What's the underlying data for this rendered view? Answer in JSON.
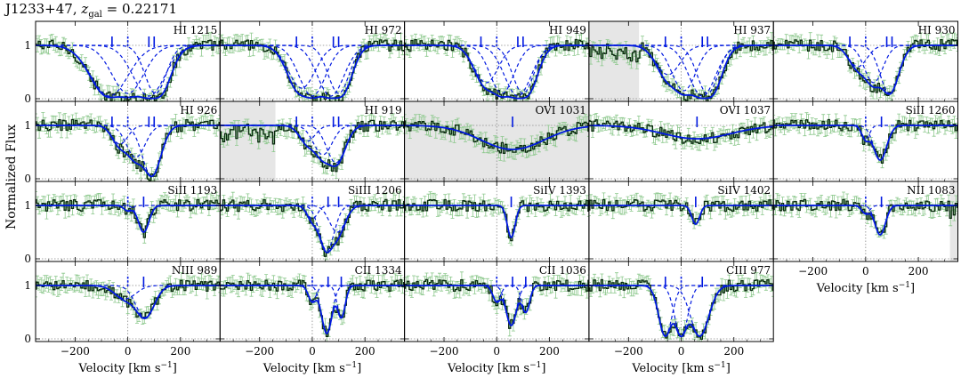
{
  "title": "J1233+47, z_gal = 0.22171",
  "title_parts": {
    "name": "J1233+47,",
    "z_symbol": "z",
    "z_sub": "gal",
    "z_value": "= 0.22171"
  },
  "ylabel": "Normalized Flux",
  "xlabel": "Velocity [km s",
  "xlabel_sup": "−1",
  "xlabel_tail": "]",
  "colors": {
    "data": "#0b2a10",
    "error": "#8cc88c",
    "model": "#0018e0",
    "shade": "#e6e6e6",
    "ref": "#888888"
  },
  "chart_data": {
    "type": "line",
    "xlim": [
      -350,
      350
    ],
    "ylim": [
      -0.05,
      1.45
    ],
    "xticks": [
      -200,
      0,
      200
    ],
    "xtick_labels": [
      "−200",
      "0",
      "200"
    ],
    "yticks": [
      0,
      1
    ],
    "ytick_labels": [
      "0",
      "1"
    ],
    "panels": [
      {
        "label": "HI 1215",
        "row": 0,
        "col": 0,
        "comps": [
          [
            -70,
            70,
            0.95
          ],
          [
            0,
            60,
            0.9
          ],
          [
            80,
            60,
            0.95
          ],
          [
            105,
            40,
            0.9
          ]
        ],
        "markers": [
          -60,
          0,
          80,
          100
        ],
        "shade": null
      },
      {
        "label": "HI 972",
        "row": 0,
        "col": 1,
        "comps": [
          [
            -40,
            50,
            0.8
          ],
          [
            0,
            50,
            0.95
          ],
          [
            70,
            50,
            0.95
          ],
          [
            100,
            40,
            0.9
          ]
        ],
        "markers": [
          -60,
          0,
          80,
          100
        ],
        "shade": null
      },
      {
        "label": "HI 949",
        "row": 0,
        "col": 2,
        "comps": [
          [
            -40,
            45,
            0.7
          ],
          [
            20,
            45,
            0.9
          ],
          [
            80,
            50,
            0.95
          ],
          [
            100,
            40,
            0.9
          ]
        ],
        "markers": [
          -60,
          0,
          80,
          100
        ],
        "shade": null
      },
      {
        "label": "HI 937",
        "row": 0,
        "col": 3,
        "comps": [
          [
            -50,
            45,
            0.55
          ],
          [
            10,
            45,
            0.85
          ],
          [
            80,
            50,
            0.95
          ],
          [
            100,
            40,
            0.9
          ]
        ],
        "markers": [
          -60,
          0,
          80,
          100
        ],
        "shade": [
          -350,
          -160
        ]
      },
      {
        "label": "HI 930",
        "row": 0,
        "col": 4,
        "comps": [
          [
            -30,
            35,
            0.4
          ],
          [
            30,
            35,
            0.7
          ],
          [
            90,
            35,
            0.9
          ]
        ],
        "markers": [
          -60,
          0,
          80,
          100
        ],
        "shade": null
      },
      {
        "label": "HI 926",
        "row": 1,
        "col": 0,
        "comps": [
          [
            -30,
            30,
            0.35
          ],
          [
            30,
            35,
            0.6
          ],
          [
            90,
            35,
            0.95
          ]
        ],
        "markers": [
          -60,
          0,
          80,
          100
        ],
        "shade": null
      },
      {
        "label": "HI 919",
        "row": 1,
        "col": 1,
        "comps": [
          [
            -20,
            30,
            0.3
          ],
          [
            40,
            35,
            0.55
          ],
          [
            90,
            35,
            0.7
          ]
        ],
        "markers": [
          -60,
          0,
          80,
          100
        ],
        "shade": [
          -350,
          -140
        ]
      },
      {
        "label": "OVI 1031",
        "row": 1,
        "col": 2,
        "comps": [
          [
            60,
            120,
            0.45
          ]
        ],
        "markers": [
          60
        ],
        "shade": [
          -350,
          350
        ]
      },
      {
        "label": "OVI 1037",
        "row": 1,
        "col": 3,
        "comps": [
          [
            60,
            130,
            0.25
          ]
        ],
        "markers": [
          60
        ],
        "shade": null
      },
      {
        "label": "SiII 1260",
        "row": 1,
        "col": 4,
        "comps": [
          [
            0,
            15,
            0.25
          ],
          [
            55,
            25,
            0.65
          ]
        ],
        "markers": [
          0,
          60
        ],
        "shade": null
      },
      {
        "label": "SiII 1193",
        "row": 2,
        "col": 0,
        "comps": [
          [
            0,
            15,
            0.1
          ],
          [
            60,
            20,
            0.5
          ]
        ],
        "markers": [
          0,
          60
        ],
        "shade": null
      },
      {
        "label": "SiIII 1206",
        "row": 2,
        "col": 1,
        "comps": [
          [
            0,
            20,
            0.25
          ],
          [
            55,
            28,
            0.85
          ],
          [
            95,
            30,
            0.5
          ]
        ],
        "markers": [
          0,
          60,
          100
        ],
        "shade": null
      },
      {
        "label": "SiIV 1393",
        "row": 2,
        "col": 2,
        "comps": [
          [
            55,
            15,
            0.6
          ]
        ],
        "markers": [
          55
        ],
        "shade": null
      },
      {
        "label": "SiIV 1402",
        "row": 2,
        "col": 3,
        "comps": [
          [
            55,
            15,
            0.35
          ]
        ],
        "markers": [
          55
        ],
        "shade": null
      },
      {
        "label": "NII 1083",
        "row": 2,
        "col": 4,
        "comps": [
          [
            0,
            15,
            0.15
          ],
          [
            55,
            20,
            0.55
          ]
        ],
        "markers": [
          0,
          60
        ],
        "shade": [
          320,
          350
        ]
      },
      {
        "label": "NIII 989",
        "row": 3,
        "col": 0,
        "comps": [
          [
            -10,
            40,
            0.25
          ],
          [
            65,
            35,
            0.6
          ]
        ],
        "markers": [
          0,
          60
        ],
        "shade": null
      },
      {
        "label": "CII 1334",
        "row": 3,
        "col": 1,
        "comps": [
          [
            0,
            15,
            0.3
          ],
          [
            55,
            20,
            0.9
          ],
          [
            110,
            15,
            0.6
          ]
        ],
        "markers": [
          0,
          60,
          110
        ],
        "shade": null
      },
      {
        "label": "CII 1036",
        "row": 3,
        "col": 2,
        "comps": [
          [
            0,
            15,
            0.3
          ],
          [
            55,
            20,
            0.75
          ],
          [
            110,
            15,
            0.5
          ]
        ],
        "markers": [
          0,
          60,
          110
        ],
        "shade": null
      },
      {
        "label": "CIII 977",
        "row": 3,
        "col": 3,
        "comps": [
          [
            -60,
            25,
            0.95
          ],
          [
            0,
            25,
            0.95
          ],
          [
            70,
            35,
            0.95
          ]
        ],
        "markers": [
          -60,
          0,
          80
        ],
        "shade": null
      }
    ]
  }
}
